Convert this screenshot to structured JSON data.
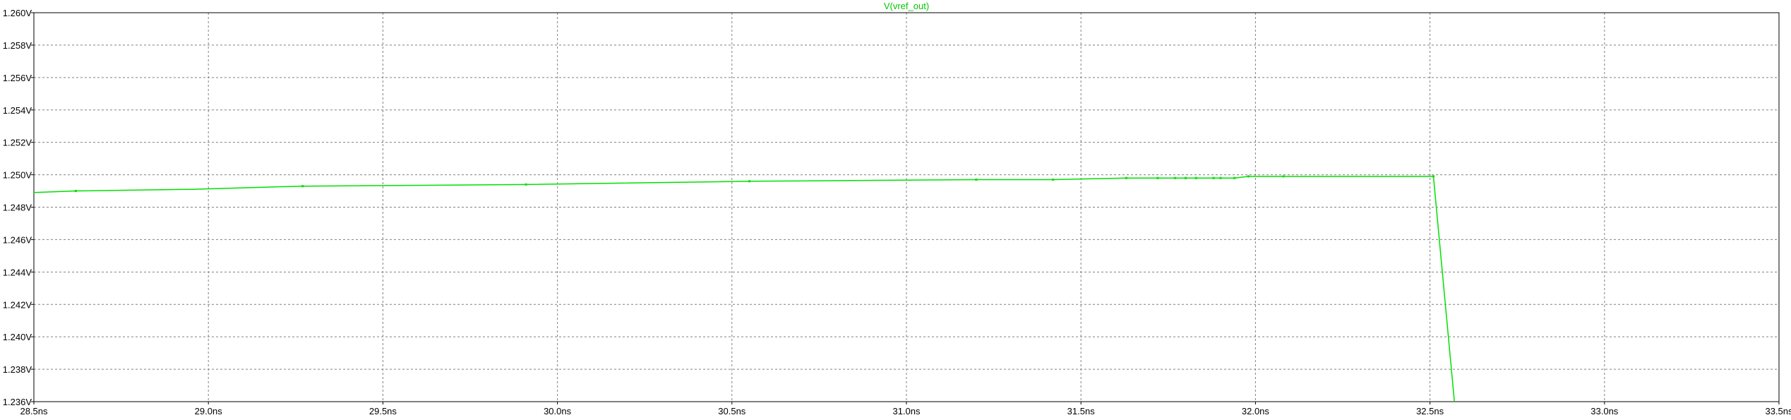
{
  "chart_data": {
    "type": "line",
    "title": "V(vref_out)",
    "title_color": "#00c800",
    "trace_color": "#00e000",
    "background": "#ffffff",
    "grid_color": "#808080",
    "grid": true,
    "xlim": [
      28.5,
      33.5
    ],
    "ylim": [
      1.236,
      1.26
    ],
    "x_ticks": [
      28.5,
      29.0,
      29.5,
      30.0,
      30.5,
      31.0,
      31.5,
      32.0,
      32.5,
      33.0,
      33.5
    ],
    "x_tick_labels": [
      "28.5ns",
      "29.0ns",
      "29.5ns",
      "30.0ns",
      "30.5ns",
      "31.0ns",
      "31.5ns",
      "32.0ns",
      "32.5ns",
      "33.0ns",
      "33.5ns"
    ],
    "y_ticks": [
      1.236,
      1.238,
      1.24,
      1.242,
      1.244,
      1.246,
      1.248,
      1.25,
      1.252,
      1.254,
      1.256,
      1.258,
      1.26
    ],
    "y_tick_labels": [
      "1.236V",
      "1.238V",
      "1.240V",
      "1.242V",
      "1.244V",
      "1.246V",
      "1.248V",
      "1.250V",
      "1.252V",
      "1.254V",
      "1.256V",
      "1.258V",
      "1.260V"
    ],
    "series": [
      {
        "name": "V(vref_out)",
        "x": [
          28.5,
          28.62,
          28.95,
          29.27,
          29.91,
          30.55,
          31.2,
          31.42,
          31.63,
          31.72,
          31.77,
          31.8,
          31.83,
          31.88,
          31.9,
          31.94,
          31.98,
          32.08,
          32.51,
          32.57
        ],
        "y": [
          1.2489,
          1.249,
          1.2491,
          1.2493,
          1.2494,
          1.2496,
          1.2497,
          1.2497,
          1.2498,
          1.2498,
          1.2498,
          1.2498,
          1.2498,
          1.2498,
          1.2498,
          1.2498,
          1.2499,
          1.2499,
          1.2499,
          1.236
        ],
        "markers_x": [
          28.62,
          29.27,
          29.91,
          30.55,
          31.2,
          31.42,
          31.63,
          31.72,
          31.77,
          31.8,
          31.83,
          31.88,
          31.9,
          31.94,
          31.98,
          32.08,
          32.51
        ]
      }
    ]
  }
}
